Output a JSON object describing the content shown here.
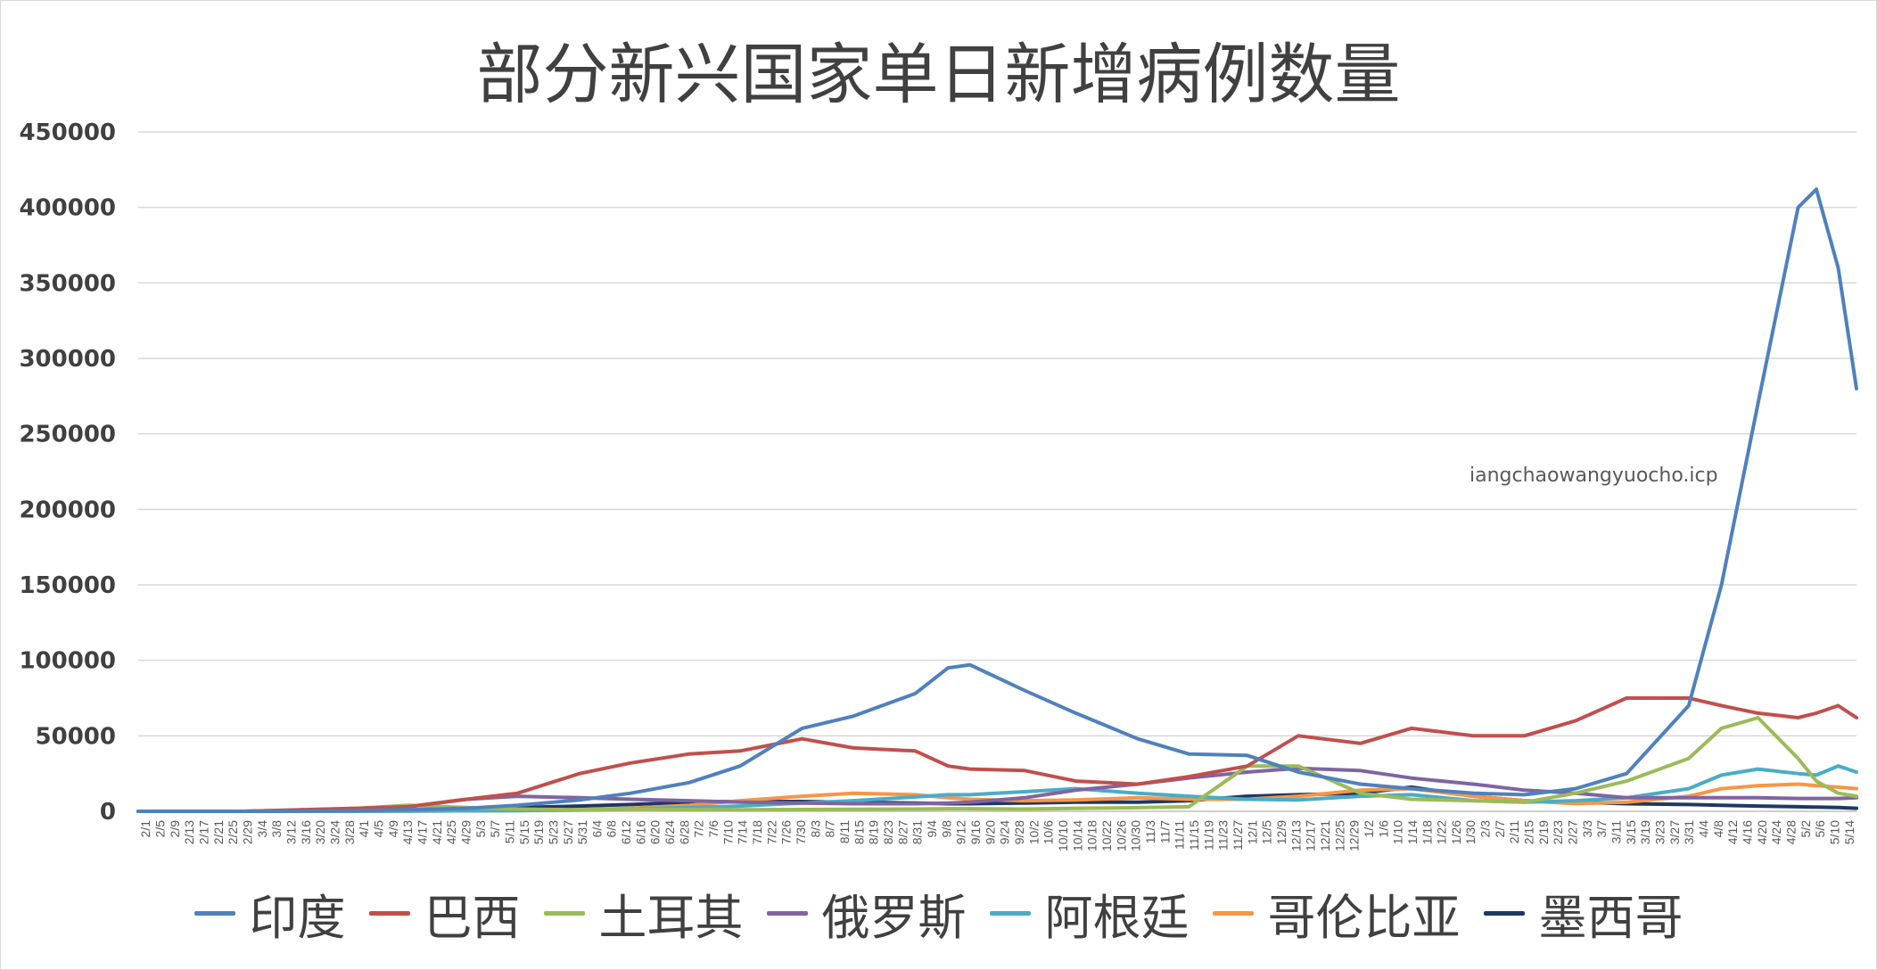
{
  "chart_data": {
    "type": "line",
    "title": "部分新兴国家单日新增病例数量",
    "watermark": "iangchaowangyuocho.icp",
    "ylim": [
      0,
      450000
    ],
    "y_ticks": [
      0,
      50000,
      100000,
      150000,
      200000,
      250000,
      300000,
      350000,
      400000,
      450000
    ],
    "y_tick_labels": [
      "0",
      "50000",
      "100000",
      "150000",
      "200000",
      "250000",
      "300000",
      "350000",
      "400000",
      "450000"
    ],
    "x_tick_labels": [
      "2/1",
      "2/5",
      "2/9",
      "2/13",
      "2/17",
      "2/21",
      "2/25",
      "2/29",
      "3/4",
      "3/8",
      "3/12",
      "3/16",
      "3/20",
      "3/24",
      "3/28",
      "4/1",
      "4/5",
      "4/9",
      "4/13",
      "4/17",
      "4/21",
      "4/25",
      "4/29",
      "5/3",
      "5/7",
      "5/11",
      "5/15",
      "5/19",
      "5/23",
      "5/27",
      "5/31",
      "6/4",
      "6/8",
      "6/12",
      "6/16",
      "6/20",
      "6/24",
      "6/28",
      "7/2",
      "7/6",
      "7/10",
      "7/14",
      "7/18",
      "7/22",
      "7/26",
      "7/30",
      "8/3",
      "8/7",
      "8/11",
      "8/15",
      "8/19",
      "8/23",
      "8/27",
      "8/31",
      "9/4",
      "9/8",
      "9/12",
      "9/16",
      "9/20",
      "9/24",
      "9/28",
      "10/2",
      "10/6",
      "10/10",
      "10/14",
      "10/18",
      "10/22",
      "10/26",
      "10/30",
      "11/3",
      "11/7",
      "11/11",
      "11/15",
      "11/19",
      "11/23",
      "11/27",
      "12/1",
      "12/5",
      "12/9",
      "12/13",
      "12/17",
      "12/21",
      "12/25",
      "12/29",
      "1/2",
      "1/6",
      "1/10",
      "1/14",
      "1/18",
      "1/22",
      "1/26",
      "1/30",
      "2/3",
      "2/7",
      "2/11",
      "2/15",
      "2/19",
      "2/23",
      "2/27",
      "3/3",
      "3/7",
      "3/11",
      "3/15",
      "3/19",
      "3/23",
      "3/27",
      "3/31",
      "4/4",
      "4/8",
      "4/12",
      "4/16",
      "4/20",
      "4/24",
      "4/28",
      "5/2",
      "5/6",
      "5/10",
      "5/14"
    ],
    "x": [
      "2020-02-01",
      "2020-03-01",
      "2020-04-01",
      "2020-04-15",
      "2020-05-01",
      "2020-05-15",
      "2020-06-01",
      "2020-06-15",
      "2020-07-01",
      "2020-07-15",
      "2020-08-01",
      "2020-08-15",
      "2020-09-01",
      "2020-09-10",
      "2020-09-16",
      "2020-10-01",
      "2020-10-15",
      "2020-11-01",
      "2020-11-15",
      "2020-12-01",
      "2020-12-15",
      "2021-01-01",
      "2021-01-15",
      "2021-02-01",
      "2021-02-15",
      "2021-03-01",
      "2021-03-15",
      "2021-04-01",
      "2021-04-10",
      "2021-04-20",
      "2021-05-01",
      "2021-05-06",
      "2021-05-12",
      "2021-05-17"
    ],
    "series": [
      {
        "name": "印度",
        "color": "#4f81bd",
        "values": [
          0,
          0,
          400,
          1000,
          2000,
          4000,
          7500,
          12000,
          19000,
          30000,
          55000,
          63000,
          78000,
          95000,
          97000,
          80000,
          65000,
          48000,
          38000,
          37000,
          26000,
          18000,
          15000,
          12000,
          11000,
          15000,
          25000,
          70000,
          150000,
          270000,
          400000,
          412000,
          360000,
          280000
        ]
      },
      {
        "name": "巴西",
        "color": "#c0504d",
        "values": [
          0,
          0,
          2000,
          3000,
          8000,
          12000,
          25000,
          32000,
          38000,
          40000,
          48000,
          42000,
          40000,
          30000,
          28000,
          27000,
          20000,
          18000,
          23000,
          30000,
          50000,
          45000,
          55000,
          50000,
          50000,
          60000,
          75000,
          75000,
          70000,
          65000,
          62000,
          65000,
          70000,
          62000
        ]
      },
      {
        "name": "土耳其",
        "color": "#9bbb59",
        "values": [
          0,
          0,
          2000,
          4000,
          2500,
          1500,
          1000,
          1300,
          1200,
          1000,
          1200,
          1300,
          1500,
          1700,
          1700,
          1500,
          2000,
          2400,
          3000,
          30000,
          30000,
          12000,
          8000,
          7000,
          6000,
          12000,
          20000,
          35000,
          55000,
          62000,
          35000,
          20000,
          12000,
          10000
        ]
      },
      {
        "name": "俄罗斯",
        "color": "#8064a2",
        "values": [
          0,
          0,
          400,
          3000,
          8000,
          10000,
          9000,
          8000,
          7000,
          6000,
          5500,
          5000,
          5000,
          5500,
          6000,
          9000,
          14000,
          18000,
          22000,
          26000,
          28500,
          27000,
          22000,
          18000,
          14000,
          12000,
          9000,
          9000,
          9000,
          9000,
          8500,
          8500,
          8500,
          9000
        ]
      },
      {
        "name": "阿根廷",
        "color": "#4bacc6",
        "values": [
          0,
          0,
          50,
          200,
          300,
          500,
          800,
          1500,
          2500,
          3500,
          5500,
          7000,
          9500,
          11000,
          11000,
          13000,
          15000,
          12000,
          10000,
          8000,
          7500,
          10000,
          11000,
          7000,
          6000,
          7000,
          9000,
          15000,
          24000,
          28000,
          25000,
          24000,
          30000,
          26000
        ]
      },
      {
        "name": "哥伦比亚",
        "color": "#f79646",
        "values": [
          0,
          0,
          50,
          200,
          300,
          500,
          1000,
          2000,
          4000,
          7000,
          10000,
          12000,
          11000,
          9000,
          8000,
          7000,
          7500,
          9000,
          8000,
          8000,
          10000,
          14000,
          15000,
          10000,
          7000,
          5000,
          6000,
          10000,
          15000,
          17000,
          18000,
          17000,
          16000,
          15000
        ]
      },
      {
        "name": "墨西哥",
        "color": "#1f3864",
        "values": [
          0,
          0,
          200,
          400,
          1000,
          2500,
          3500,
          4500,
          6000,
          6500,
          6500,
          6000,
          5500,
          5000,
          5000,
          5500,
          6000,
          6000,
          7000,
          10000,
          11000,
          12000,
          16000,
          10000,
          7000,
          6000,
          5000,
          4500,
          4000,
          3500,
          3000,
          2800,
          2500,
          2000
        ]
      }
    ],
    "grid": true,
    "legend_position": "bottom"
  }
}
